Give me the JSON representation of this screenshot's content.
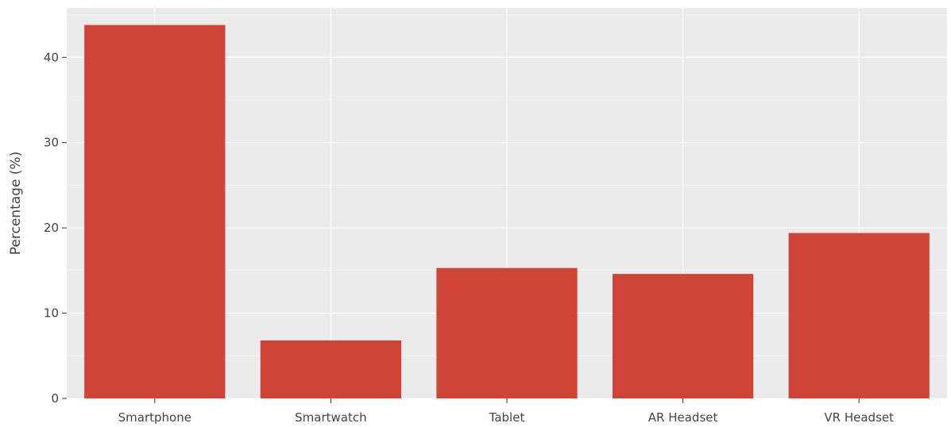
{
  "chart_data": {
    "type": "bar",
    "title": "",
    "xlabel": "",
    "ylabel": "Percentage (%)",
    "categories": [
      "Smartphone",
      "Smartwatch",
      "Tablet",
      "AR Headset",
      "VR Headset"
    ],
    "values": [
      43.8,
      6.8,
      15.3,
      14.6,
      19.4
    ],
    "ylim": [
      0,
      45.8
    ],
    "yticks": [
      0,
      10,
      20,
      30,
      40
    ],
    "ytick_labels": [
      "0",
      "10",
      "20",
      "30",
      "40"
    ],
    "grid": true,
    "colors": {
      "bar": "#d04437",
      "plot_background": "#ebebeb",
      "grid": "#ffffff",
      "axis_text": "#444444"
    }
  }
}
